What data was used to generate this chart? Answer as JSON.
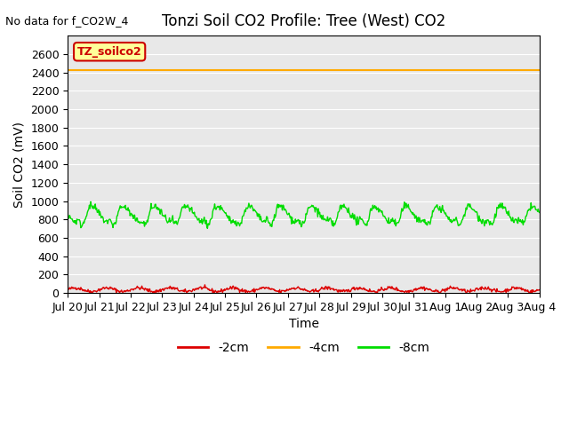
{
  "title": "Tonzi Soil CO2 Profile: Tree (West) CO2",
  "no_data_label": "No data for f_CO2W_4",
  "legend_box_label": "TZ_soilco2",
  "xlabel": "Time",
  "ylabel": "Soil CO2 (mV)",
  "ylim": [
    0,
    2800
  ],
  "yticks": [
    0,
    200,
    400,
    600,
    800,
    1000,
    1200,
    1400,
    1600,
    1800,
    2000,
    2200,
    2400,
    2600
  ],
  "xtick_labels": [
    "Jul 20",
    "Jul 21",
    "Jul 22",
    "Jul 23",
    "Jul 24",
    "Jul 25",
    "Jul 26",
    "Jul 27",
    "Jul 28",
    "Jul 29",
    "Jul 30",
    "Jul 31",
    "Aug 1",
    "Aug 2",
    "Aug 3",
    "Aug 4"
  ],
  "n_days": 15,
  "line_neg2cm_color": "#dd0000",
  "line_neg4cm_color": "#ffaa00",
  "line_neg8cm_color": "#00dd00",
  "line_neg2cm_label": "-2cm",
  "line_neg4cm_label": "-4cm",
  "line_neg8cm_label": "-8cm",
  "neg4cm_value": 2420,
  "neg2cm_base": 35,
  "neg2cm_amp": 20,
  "neg8cm_base": 860,
  "neg8cm_amp": 80,
  "bg_color": "#e8e8e8",
  "legend_box_bg": "#ffff99",
  "legend_box_edge": "#cc0000",
  "title_fontsize": 12,
  "axis_label_fontsize": 10,
  "tick_fontsize": 9,
  "annotation_fontsize": 9,
  "figsize": [
    6.4,
    4.8
  ],
  "dpi": 100
}
